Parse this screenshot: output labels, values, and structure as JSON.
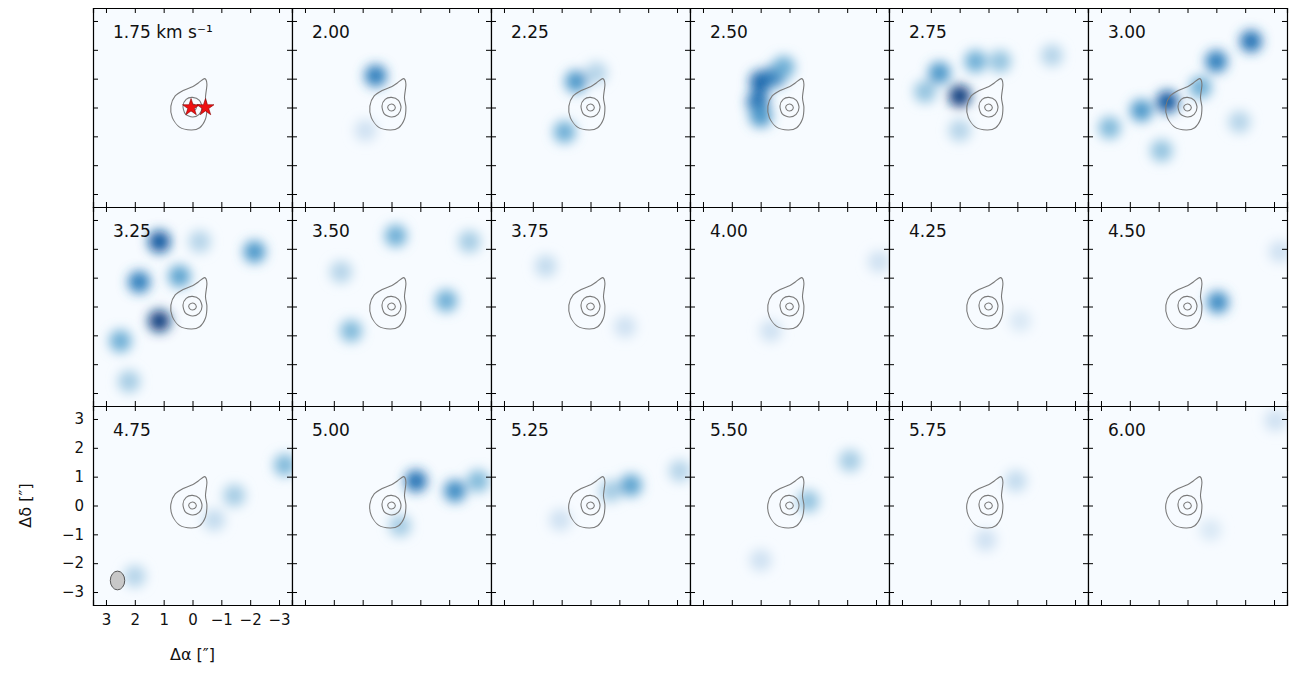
{
  "chart_data": {
    "type": "channel_map",
    "x_label": "Δα [″]",
    "y_label": "Δδ [″]",
    "xlim": [
      3.45,
      -3.45
    ],
    "ylim": [
      -3.45,
      3.45
    ],
    "xticks": [
      3,
      2,
      1,
      0,
      {
        "value": -1,
        "label": "−1"
      },
      {
        "value": -2,
        "label": "−2"
      },
      {
        "value": -3,
        "label": "−3"
      }
    ],
    "yticks": [
      3,
      2,
      1,
      0,
      {
        "value": -1,
        "label": "−1"
      },
      {
        "value": -2,
        "label": "−2"
      },
      {
        "value": -3,
        "label": "−3"
      }
    ],
    "intensity_range": [
      0,
      1
    ],
    "contours": [
      [
        [
          0.05,
          -0.78
        ],
        [
          0.45,
          -0.68
        ],
        [
          0.7,
          -0.35
        ],
        [
          0.75,
          0.05
        ],
        [
          0.6,
          0.4
        ],
        [
          0.3,
          0.6
        ],
        [
          0.0,
          0.72
        ],
        [
          -0.2,
          0.85
        ],
        [
          -0.42,
          1.0
        ],
        [
          -0.5,
          0.8
        ],
        [
          -0.45,
          0.35
        ],
        [
          -0.5,
          0.0
        ],
        [
          -0.45,
          -0.4
        ],
        [
          -0.25,
          -0.7
        ]
      ],
      [
        [
          0.0,
          -0.33
        ],
        [
          0.25,
          -0.22
        ],
        [
          0.33,
          0.05
        ],
        [
          0.22,
          0.28
        ],
        [
          0.0,
          0.35
        ],
        [
          -0.24,
          0.25
        ],
        [
          -0.33,
          0.0
        ],
        [
          -0.23,
          -0.24
        ]
      ],
      [
        [
          0.0,
          -0.12
        ],
        [
          0.11,
          -0.06
        ],
        [
          0.12,
          0.05
        ],
        [
          0.0,
          0.12
        ],
        [
          -0.11,
          0.06
        ],
        [
          -0.12,
          -0.05
        ]
      ]
    ],
    "panels": [
      {
        "label": "1.75 km s⁻¹",
        "blobs": [],
        "stars": [
          {
            "x": 0.05,
            "y": 0.0
          },
          {
            "x": -0.45,
            "y": 0.0
          }
        ]
      },
      {
        "label": "2.00",
        "blobs": [
          {
            "x": 0.55,
            "y": 1.1,
            "intensity": 0.7
          },
          {
            "x": 0.9,
            "y": -0.8,
            "intensity": 0.2
          }
        ]
      },
      {
        "label": "2.25",
        "blobs": [
          {
            "x": 0.5,
            "y": 0.9,
            "intensity": 0.6
          },
          {
            "x": 0.9,
            "y": -0.85,
            "intensity": 0.5
          },
          {
            "x": -0.2,
            "y": 1.2,
            "intensity": 0.3
          }
        ]
      },
      {
        "label": "2.50",
        "blobs": [
          {
            "x": 1.0,
            "y": 0.9,
            "intensity": 0.8
          },
          {
            "x": 1.1,
            "y": 0.2,
            "intensity": 0.75
          },
          {
            "x": 1.0,
            "y": -0.3,
            "intensity": 0.6
          },
          {
            "x": 0.5,
            "y": 1.1,
            "intensity": 0.7
          },
          {
            "x": 0.2,
            "y": 1.4,
            "intensity": 0.5
          }
        ]
      },
      {
        "label": "2.75",
        "blobs": [
          {
            "x": 1.0,
            "y": 0.4,
            "intensity": 0.95
          },
          {
            "x": 1.7,
            "y": 1.2,
            "intensity": 0.6
          },
          {
            "x": 0.45,
            "y": 1.6,
            "intensity": 0.5
          },
          {
            "x": 2.2,
            "y": 0.55,
            "intensity": 0.4
          },
          {
            "x": -0.4,
            "y": 1.6,
            "intensity": 0.4
          },
          {
            "x": -2.2,
            "y": 1.8,
            "intensity": 0.3
          },
          {
            "x": 1.0,
            "y": -0.8,
            "intensity": 0.3
          }
        ]
      },
      {
        "label": "3.00",
        "blobs": [
          {
            "x": 0.7,
            "y": 0.2,
            "intensity": 0.85
          },
          {
            "x": 1.6,
            "y": -0.1,
            "intensity": 0.6
          },
          {
            "x": 2.7,
            "y": -0.7,
            "intensity": 0.45
          },
          {
            "x": -1.0,
            "y": 1.6,
            "intensity": 0.7
          },
          {
            "x": -2.2,
            "y": 2.3,
            "intensity": 0.75
          },
          {
            "x": -0.45,
            "y": 0.7,
            "intensity": 0.5
          },
          {
            "x": 0.9,
            "y": -1.5,
            "intensity": 0.4
          },
          {
            "x": -1.8,
            "y": -0.5,
            "intensity": 0.3
          }
        ]
      },
      {
        "label": "3.25",
        "blobs": [
          {
            "x": 1.15,
            "y": 2.25,
            "intensity": 0.85
          },
          {
            "x": 1.15,
            "y": -0.5,
            "intensity": 0.95
          },
          {
            "x": 1.85,
            "y": 0.85,
            "intensity": 0.7
          },
          {
            "x": 2.5,
            "y": -1.2,
            "intensity": 0.5
          },
          {
            "x": 2.2,
            "y": -2.6,
            "intensity": 0.35
          },
          {
            "x": -2.15,
            "y": 1.9,
            "intensity": 0.6
          },
          {
            "x": -0.25,
            "y": 2.25,
            "intensity": 0.3
          },
          {
            "x": 0.45,
            "y": 1.05,
            "intensity": 0.55
          }
        ]
      },
      {
        "label": "3.50",
        "blobs": [
          {
            "x": -0.15,
            "y": 2.45,
            "intensity": 0.5
          },
          {
            "x": -1.9,
            "y": 0.2,
            "intensity": 0.5
          },
          {
            "x": 1.4,
            "y": -0.85,
            "intensity": 0.45
          },
          {
            "x": 1.75,
            "y": 1.2,
            "intensity": 0.3
          },
          {
            "x": -2.7,
            "y": 2.25,
            "intensity": 0.35
          }
        ]
      },
      {
        "label": "3.75",
        "blobs": [
          {
            "x": 1.55,
            "y": 1.4,
            "intensity": 0.25
          },
          {
            "x": -1.2,
            "y": -0.7,
            "intensity": 0.2
          }
        ]
      },
      {
        "label": "4.00",
        "blobs": [
          {
            "x": 0.65,
            "y": -0.85,
            "intensity": 0.2
          },
          {
            "x": -3.1,
            "y": 1.55,
            "intensity": 0.2
          }
        ]
      },
      {
        "label": "4.25",
        "blobs": [
          {
            "x": -1.1,
            "y": -0.5,
            "intensity": 0.15
          }
        ]
      },
      {
        "label": "4.50",
        "blobs": [
          {
            "x": -1.05,
            "y": 0.15,
            "intensity": 0.65
          },
          {
            "x": -3.2,
            "y": 1.9,
            "intensity": 0.2
          }
        ]
      },
      {
        "label": "4.75",
        "blobs": [
          {
            "x": -3.2,
            "y": 1.4,
            "intensity": 0.45
          },
          {
            "x": -1.45,
            "y": 0.35,
            "intensity": 0.35
          },
          {
            "x": -0.75,
            "y": -0.5,
            "intensity": 0.25
          },
          {
            "x": 2.0,
            "y": -2.45,
            "intensity": 0.3
          }
        ],
        "beam": {
          "x": 2.6,
          "y": -2.6,
          "major": 0.65,
          "minor": 0.5
        }
      },
      {
        "label": "5.00",
        "blobs": [
          {
            "x": -0.85,
            "y": 0.85,
            "intensity": 0.75
          },
          {
            "x": -2.2,
            "y": 0.5,
            "intensity": 0.65
          },
          {
            "x": -3.0,
            "y": 0.85,
            "intensity": 0.45
          },
          {
            "x": -0.3,
            "y": -0.7,
            "intensity": 0.35
          }
        ]
      },
      {
        "label": "5.25",
        "blobs": [
          {
            "x": -1.4,
            "y": 0.7,
            "intensity": 0.55
          },
          {
            "x": -0.7,
            "y": 0.5,
            "intensity": 0.35
          },
          {
            "x": -3.1,
            "y": 1.2,
            "intensity": 0.3
          },
          {
            "x": 1.05,
            "y": -0.5,
            "intensity": 0.2
          }
        ]
      },
      {
        "label": "5.50",
        "blobs": [
          {
            "x": -0.65,
            "y": 0.15,
            "intensity": 0.4
          },
          {
            "x": -2.1,
            "y": 1.55,
            "intensity": 0.35
          },
          {
            "x": 1.0,
            "y": -1.9,
            "intensity": 0.2
          }
        ]
      },
      {
        "label": "5.75",
        "blobs": [
          {
            "x": -0.95,
            "y": 0.85,
            "intensity": 0.25
          },
          {
            "x": 0.1,
            "y": -1.2,
            "intensity": 0.2
          }
        ]
      },
      {
        "label": "6.00",
        "blobs": [
          {
            "x": -3.05,
            "y": 2.95,
            "intensity": 0.2
          },
          {
            "x": -0.8,
            "y": -0.85,
            "intensity": 0.15
          }
        ]
      }
    ]
  }
}
